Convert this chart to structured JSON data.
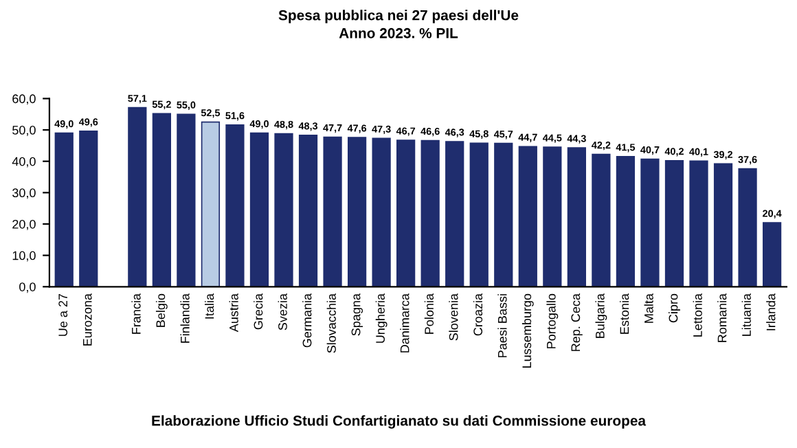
{
  "chart_data": {
    "type": "bar",
    "title": "Spesa pubblica nei 27 paesi dell'Ue",
    "subtitle": "Anno 2023. % PIL",
    "categories": [
      "Ue a 27",
      "Eurozona",
      null,
      "Francia",
      "Belgio",
      "Finlandia",
      "Italia",
      "Austria",
      "Grecia",
      "Svezia",
      "Germania",
      "Slovacchia",
      "Spagna",
      "Ungheria",
      "Danimarca",
      "Polonia",
      "Slovenia",
      "Croazia",
      "Paesi Bassi",
      "Lussemburgo",
      "Portogallo",
      "Rep. Ceca",
      "Bulgaria",
      "Estonia",
      "Malta",
      "Cipro",
      "Lettonia",
      "Romania",
      "Lituania",
      "Irlanda"
    ],
    "values": [
      49.0,
      49.6,
      null,
      57.1,
      55.2,
      55.0,
      52.5,
      51.6,
      49.0,
      48.8,
      48.3,
      47.7,
      47.6,
      47.3,
      46.7,
      46.6,
      46.3,
      45.8,
      45.7,
      44.7,
      44.5,
      44.3,
      42.2,
      41.5,
      40.7,
      40.2,
      40.1,
      39.2,
      37.6,
      20.4
    ],
    "value_labels": [
      "49,0",
      "49,6",
      null,
      "57,1",
      "55,2",
      "55,0",
      "52,5",
      "51,6",
      "49,0",
      "48,8",
      "48,3",
      "47,7",
      "47,6",
      "47,3",
      "46,7",
      "46,6",
      "46,3",
      "45,8",
      "45,7",
      "44,7",
      "44,5",
      "44,3",
      "42,2",
      "41,5",
      "40,7",
      "40,2",
      "40,1",
      "39,2",
      "37,6",
      "20,4"
    ],
    "colors": [
      "#1f2d6e",
      "#1f2d6e",
      null,
      "#1f2d6e",
      "#1f2d6e",
      "#1f2d6e",
      "#b8cce4",
      "#1f2d6e",
      "#1f2d6e",
      "#1f2d6e",
      "#1f2d6e",
      "#1f2d6e",
      "#1f2d6e",
      "#1f2d6e",
      "#1f2d6e",
      "#1f2d6e",
      "#1f2d6e",
      "#1f2d6e",
      "#1f2d6e",
      "#1f2d6e",
      "#1f2d6e",
      "#1f2d6e",
      "#1f2d6e",
      "#1f2d6e",
      "#1f2d6e",
      "#1f2d6e",
      "#1f2d6e",
      "#1f2d6e",
      "#1f2d6e",
      "#1f2d6e"
    ],
    "ylim": [
      0,
      60
    ],
    "yticks": [
      {
        "value": 0,
        "label": "0,0"
      },
      {
        "value": 10,
        "label": "10,0"
      },
      {
        "value": 20,
        "label": "20,0"
      },
      {
        "value": 30,
        "label": "30,0"
      },
      {
        "value": 40,
        "label": "40,0"
      },
      {
        "value": 50,
        "label": "50,0"
      },
      {
        "value": 60,
        "label": "60,0"
      }
    ],
    "grid": false,
    "legend": false,
    "annotations": [
      "Elaborazione Ufficio Studi Confartigianato su dati Commissione europea"
    ]
  }
}
